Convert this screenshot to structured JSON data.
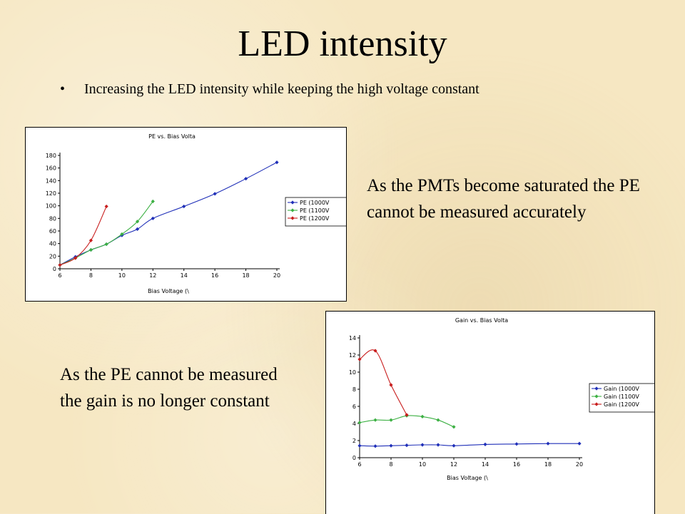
{
  "slide": {
    "title": "LED intensity",
    "bullet": "Increasing the LED intensity while keeping the high voltage constant",
    "note_top": "As the PMTs become saturated the PE cannot be measured accurately",
    "note_bottom": "As the PE cannot be measured the gain is no longer constant"
  },
  "colors": {
    "background": "#f6e7c2",
    "series_blue": "#1f2fb8",
    "series_green": "#3cb043",
    "series_red": "#c81d1d"
  },
  "chart_data": [
    {
      "type": "line",
      "title": "PE vs. Bias Volta",
      "xlabel": "Bias Voltage (\\",
      "ylabel": "",
      "xlim": [
        6,
        20
      ],
      "ylim": [
        0,
        180
      ],
      "xticks": [
        "6",
        "8",
        "10",
        "12",
        "14",
        "16",
        "18",
        "20"
      ],
      "yticks": [
        "0",
        "20",
        "40",
        "60",
        "80",
        "100",
        "120",
        "140",
        "160",
        "180"
      ],
      "grid": false,
      "legend_position": "right",
      "series": [
        {
          "name": "PE (1000V",
          "color": "#1f2fb8",
          "x": [
            6,
            7,
            8,
            9,
            10,
            11,
            12,
            14,
            16,
            18,
            20
          ],
          "y": [
            6,
            19,
            30,
            39,
            53,
            63,
            80,
            99,
            119,
            143,
            169
          ]
        },
        {
          "name": "PE (1100V",
          "color": "#3cb043",
          "x": [
            6,
            7,
            8,
            9,
            10,
            11,
            12
          ],
          "y": [
            6,
            17,
            30,
            39,
            55,
            75,
            107
          ]
        },
        {
          "name": "PE (1200V",
          "color": "#c81d1d",
          "x": [
            6,
            7,
            8,
            9
          ],
          "y": [
            6,
            17,
            45,
            99
          ]
        }
      ]
    },
    {
      "type": "line",
      "title": "Gain vs. Bias Volta",
      "xlabel": "Bias Voltage (\\",
      "ylabel": "",
      "xlim": [
        6,
        20
      ],
      "ylim": [
        0,
        14
      ],
      "xticks": [
        "6",
        "8",
        "10",
        "12",
        "14",
        "16",
        "18",
        "20"
      ],
      "yticks": [
        "0",
        "2",
        "4",
        "6",
        "8",
        "10",
        "12",
        "14"
      ],
      "grid": false,
      "legend_position": "right",
      "series": [
        {
          "name": "Gain (1000V",
          "color": "#1f2fb8",
          "x": [
            6,
            7,
            8,
            9,
            10,
            11,
            12,
            14,
            16,
            18,
            20
          ],
          "y": [
            1.4,
            1.35,
            1.4,
            1.45,
            1.5,
            1.5,
            1.4,
            1.55,
            1.6,
            1.65,
            1.65
          ]
        },
        {
          "name": "Gain (1100V",
          "color": "#3cb043",
          "x": [
            6,
            7,
            8,
            9,
            10,
            11,
            12
          ],
          "y": [
            4.1,
            4.4,
            4.4,
            4.9,
            4.8,
            4.4,
            3.6
          ]
        },
        {
          "name": "Gain (1200V",
          "color": "#c81d1d",
          "x": [
            6,
            7,
            8,
            9
          ],
          "y": [
            11.5,
            12.5,
            8.5,
            5.0
          ]
        }
      ]
    }
  ]
}
